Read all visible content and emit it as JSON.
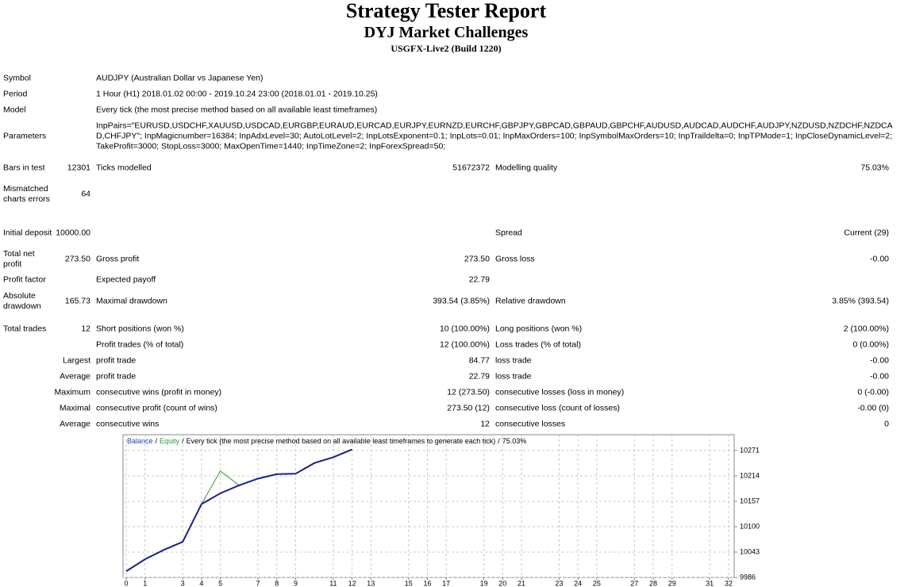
{
  "header": {
    "title": "Strategy Tester Report",
    "subtitle": "DYJ Market Challenges",
    "server": "USGFX-Live2 (Build 1220)"
  },
  "rows": [
    {
      "label": "Symbol",
      "text": "AUDJPY (Australian Dollar vs Japanese Yen)"
    },
    {
      "label": "Period",
      "text": "1 Hour (H1) 2018.01.02 00:00 - 2019.10.24 23:00 (2018.01.01 - 2019.10.25)"
    },
    {
      "label": "Model",
      "text": "Every tick (the most precise method based on all available least timeframes)"
    },
    {
      "label": "Parameters",
      "text": "InpPairs=\"EURUSD,USDCHF,XAUUSD,USDCAD,EURGBP,EURAUD,EURCAD,EURJPY,EURNZD,EURCHF,GBPJPY,GBPCAD,GBPAUD,GBPCHF,AUDUSD,AUDCAD,AUDCHF,AUDJPY,NZDUSD,NZDCHF,NZDCAD,CHFJPY\"; InpMagicnumber=16384; InpAdxLevel=30; AutoLotLevel=2; InpLotsExponent=0.1; InpLots=0.01; InpMaxOrders=100; InpSymbolMaxOrders=10; InpTraildelta=0; InpTPMode=1; InpCloseDynamicLevel=2; TakeProfit=3000; StopLoss=3000; MaxOpenTime=1440; InpTimeZone=2; InpForexSpread=50;"
    },
    {
      "label": "Bars in test",
      "value": "12301",
      "label2": "Ticks modelled",
      "value2": "51672372",
      "label3": "Modelling quality",
      "value3": "75.03%"
    },
    {
      "label": "Mismatched charts errors",
      "value": "64"
    },
    {
      "label": "Initial deposit",
      "value": "10000.00",
      "label3": "Spread",
      "value3": "Current (29)"
    },
    {
      "label": "Total net profit",
      "value": "273.50",
      "label2": "Gross profit",
      "value2": "273.50",
      "label3": "Gross loss",
      "value3": "-0.00"
    },
    {
      "label": "Profit factor",
      "label2": "Expected payoff",
      "value2": "22.79"
    },
    {
      "label": "Absolute drawdown",
      "value": "165.73",
      "label2": "Maximal drawdown",
      "value2": "393.54 (3.85%)",
      "label3": "Relative drawdown",
      "value3": "3.85% (393.54)"
    },
    {
      "label": "Total trades",
      "value": "12",
      "label2": "Short positions (won %)",
      "value2": "10 (100.00%)",
      "label3": "Long positions (won %)",
      "value3": "2 (100.00%)"
    },
    {
      "label2": "Profit trades (% of total)",
      "value2": "12 (100.00%)",
      "label3": "Loss trades (% of total)",
      "value3": "0 (0.00%)"
    },
    {
      "value": "Largest",
      "label2": "profit trade",
      "value2": "84.77",
      "label3": "loss trade",
      "value3": "-0.00"
    },
    {
      "value": "Average",
      "label2": "profit trade",
      "value2": "22.79",
      "label3": "loss trade",
      "value3": "-0.00"
    },
    {
      "value": "Maximum",
      "label2": "consecutive wins (profit in money)",
      "value2": "12 (273.50)",
      "label3": "consecutive losses (loss in money)",
      "value3": "0 (-0.00)"
    },
    {
      "value": "Maximal",
      "label2": "consecutive profit (count of wins)",
      "value2": "273.50 (12)",
      "label3": "consecutive loss (count of losses)",
      "value3": "-0.00 (0)"
    },
    {
      "value": "Average",
      "label2": "consecutive wins",
      "value2": "12",
      "label3": "consecutive losses",
      "value3": "0"
    }
  ],
  "chart_data": {
    "type": "line",
    "separator": "/",
    "model_text": "Every tick (the most precise method based on all available least timeframes to generate each tick)",
    "quality": "75.03%",
    "x": [
      0,
      1,
      2,
      3,
      4,
      5,
      6,
      7,
      8,
      9,
      10,
      11,
      12
    ],
    "series": [
      {
        "name": "Equity",
        "color": "#2e9a2e",
        "values": [
          10000,
          10027,
          10048,
          10066,
          10150.77,
          10225,
          10193,
          10208,
          10218,
          10219,
          10243,
          10256,
          10273.5
        ]
      },
      {
        "name": "Balance",
        "color": "#1a1f8f",
        "values": [
          10000,
          10027,
          10048,
          10066,
          10150.77,
          10175,
          10193,
          10208,
          10218,
          10219,
          10243,
          10256,
          10273.5
        ]
      }
    ],
    "legend_colors": {
      "Balance": "#2040c0",
      "Equity": "#2e9a2e"
    },
    "xlim": [
      -0.17,
      32.3
    ],
    "xticks": [
      0,
      1,
      3,
      4,
      5,
      7,
      8,
      9,
      11,
      12,
      13,
      15,
      16,
      17,
      19,
      20,
      21,
      23,
      24,
      25,
      27,
      28,
      29,
      31,
      32
    ],
    "ylim": [
      9986,
      10306.6
    ],
    "yticks": [
      9986,
      10043,
      10100,
      10157,
      10214,
      10271
    ],
    "grid": true
  }
}
